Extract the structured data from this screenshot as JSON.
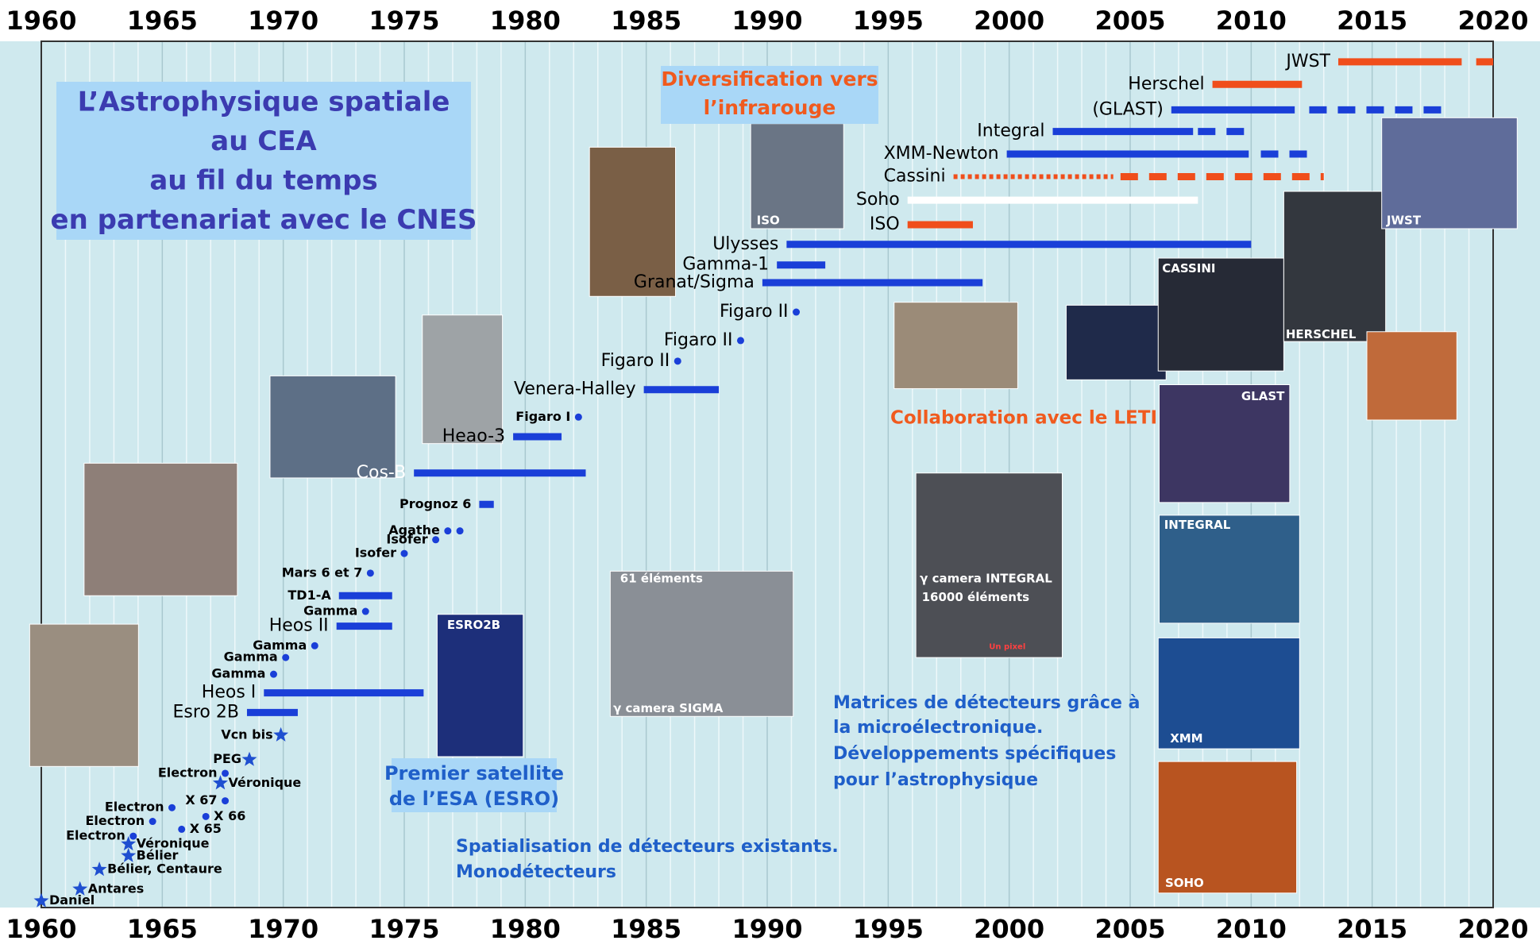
{
  "chart_data": {
    "type": "timeline",
    "title": [
      "L’Astrophysique spatiale",
      "au CEA",
      "au fil du temps",
      "en partenariat avec le CNES"
    ],
    "annotations": [
      {
        "lines": [
          "Diversification vers",
          "l’infrarouge"
        ]
      },
      {
        "lines": [
          "Collaboration avec le LETI"
        ]
      },
      {
        "lines": [
          "Premier satellite",
          "de l’ESA (ESRO)"
        ]
      },
      {
        "lines": [
          "Matrices de détecteurs grâce à",
          " la microélectronique.",
          "Développements spécifiques",
          "pour l’astrophysique"
        ]
      },
      {
        "lines": [
          "Spatialisation de détecteurs existants.",
          "Monodétecteurs"
        ]
      }
    ],
    "photo_captions": [
      "ISO",
      "CASSINI",
      "HERSCHEL",
      "JWST",
      "GLAST",
      "INTEGRAL",
      "XMM",
      "SOHO",
      "ESRO2B",
      "61 éléments",
      "γ camera SIGMA",
      "γ camera INTEGRAL",
      "16000 éléments",
      "Un pixel"
    ],
    "xlim": [
      1960,
      2020
    ],
    "xticks": [
      1960,
      1965,
      1970,
      1975,
      1980,
      1985,
      1990,
      1995,
      2000,
      2005,
      2010,
      2015,
      2020
    ],
    "xminorticks": [
      1961,
      1962,
      1963,
      1964,
      1966,
      1967,
      1968,
      1969,
      1971,
      1972,
      1973,
      1974,
      1976,
      1977,
      1978,
      1979,
      1981,
      1982,
      1983,
      1984,
      1986,
      1987,
      1988,
      1989,
      1991,
      1992,
      1993,
      1994,
      1996,
      1997,
      1998,
      1999,
      2001,
      2002,
      2003,
      2004,
      2006,
      2007,
      2008,
      2009,
      2011,
      2012,
      2013,
      2014,
      2016,
      2017,
      2018,
      2019
    ],
    "grid": true,
    "items": [
      {
        "label": "JWST",
        "color": "#f04e1b",
        "segments": [
          {
            "start": 2013.6,
            "end": 2018.7,
            "style": "solid"
          },
          {
            "start": 2019.3,
            "end": 2020,
            "style": "solid"
          }
        ]
      },
      {
        "label": "Herschel",
        "color": "#f04e1b",
        "segments": [
          {
            "start": 2008.4,
            "end": 2012.1,
            "style": "solid"
          }
        ]
      },
      {
        "label": "(GLAST)",
        "color": "#1a3fd8",
        "segments": [
          {
            "start": 2006.7,
            "end": 2011.8,
            "style": "solid"
          },
          {
            "start": 2012.4,
            "end": 2018.2,
            "style": "dashed"
          }
        ]
      },
      {
        "label": "Integral",
        "color": "#1a3fd8",
        "segments": [
          {
            "start": 2001.8,
            "end": 2007.6,
            "style": "solid"
          },
          {
            "start": 2007.8,
            "end": 2009.9,
            "style": "dashed"
          }
        ]
      },
      {
        "label": "XMM-Newton",
        "color": "#1a3fd8",
        "segments": [
          {
            "start": 1999.9,
            "end": 2009.9,
            "style": "solid"
          },
          {
            "start": 2010.4,
            "end": 2012.4,
            "style": "dashed"
          }
        ]
      },
      {
        "label": "Cassini",
        "color": "#f04e1b",
        "segments": [
          {
            "start": 1997.7,
            "end": 2004.3,
            "style": "dotted"
          },
          {
            "start": 2004.6,
            "end": 2013,
            "style": "dashed"
          }
        ]
      },
      {
        "label": "Soho",
        "color": "#ffffff",
        "segments": [
          {
            "start": 1995.8,
            "end": 2007.8,
            "style": "solid"
          }
        ]
      },
      {
        "label": "ISO",
        "color": "#f04e1b",
        "segments": [
          {
            "start": 1995.8,
            "end": 1998.5,
            "style": "solid"
          }
        ]
      },
      {
        "label": "Ulysses",
        "color": "#1a3fd8",
        "segments": [
          {
            "start": 1990.8,
            "end": 2010,
            "style": "solid"
          }
        ]
      },
      {
        "label": "Gamma-1",
        "color": "#1a3fd8",
        "segments": [
          {
            "start": 1990.4,
            "end": 1992.4,
            "style": "solid"
          }
        ]
      },
      {
        "label": "Granat/Sigma",
        "color": "#1a3fd8",
        "segments": [
          {
            "start": 1989.8,
            "end": 1998.9,
            "style": "solid"
          }
        ]
      },
      {
        "label": "Figaro II",
        "color": "#1a3fd8",
        "marker": "dot",
        "points": [
          1991.2
        ]
      },
      {
        "label": "Figaro II",
        "color": "#1a3fd8",
        "marker": "dot",
        "points": [
          1988.9
        ]
      },
      {
        "label": "Figaro II",
        "color": "#1a3fd8",
        "marker": "dot",
        "points": [
          1986.3
        ]
      },
      {
        "label": "Venera-Halley",
        "color": "#1a3fd8",
        "segments": [
          {
            "start": 1984.9,
            "end": 1988,
            "style": "solid"
          }
        ]
      },
      {
        "label": "Figaro I",
        "color": "#1a3fd8",
        "marker": "dot",
        "points": [
          1982.2
        ]
      },
      {
        "label": "Heao-3",
        "color": "#1a3fd8",
        "segments": [
          {
            "start": 1979.5,
            "end": 1981.5,
            "style": "solid"
          }
        ]
      },
      {
        "label": "Cos-B",
        "color": "#1a3fd8",
        "segments": [
          {
            "start": 1975.4,
            "end": 1982.5,
            "style": "solid"
          }
        ]
      },
      {
        "label": "Prognoz 6",
        "color": "#1a3fd8",
        "segments": [
          {
            "start": 1978.1,
            "end": 1978.7,
            "style": "solid"
          }
        ]
      },
      {
        "label": "Agathe",
        "color": "#1a3fd8",
        "marker": "dot",
        "points": [
          1976.8,
          1977.3
        ]
      },
      {
        "label": "Isofer",
        "color": "#1a3fd8",
        "marker": "dot",
        "points": [
          1976.3
        ]
      },
      {
        "label": "Isofer",
        "color": "#1a3fd8",
        "marker": "dot",
        "points": [
          1975.0
        ]
      },
      {
        "label": "Mars 6 et 7",
        "color": "#1a3fd8",
        "marker": "dot",
        "points": [
          1973.6
        ]
      },
      {
        "label": "TD1-A",
        "color": "#1a3fd8",
        "segments": [
          {
            "start": 1972.3,
            "end": 1974.5,
            "style": "solid"
          }
        ]
      },
      {
        "label": "Gamma",
        "color": "#1a3fd8",
        "marker": "dot",
        "points": [
          1973.4
        ]
      },
      {
        "label": "Heos II",
        "color": "#1a3fd8",
        "segments": [
          {
            "start": 1972.2,
            "end": 1974.5,
            "style": "solid"
          }
        ]
      },
      {
        "label": "Gamma",
        "color": "#1a3fd8",
        "marker": "dot",
        "points": [
          1971.3
        ]
      },
      {
        "label": "Gamma",
        "color": "#1a3fd8",
        "marker": "dot",
        "points": [
          1970.1
        ]
      },
      {
        "label": "Gamma",
        "color": "#1a3fd8",
        "marker": "dot",
        "points": [
          1969.6
        ]
      },
      {
        "label": "Heos I",
        "color": "#1a3fd8",
        "segments": [
          {
            "start": 1969.2,
            "end": 1975.8,
            "style": "solid"
          }
        ]
      },
      {
        "label": "Esro 2B",
        "color": "#1a3fd8",
        "segments": [
          {
            "start": 1968.5,
            "end": 1970.6,
            "style": "solid"
          }
        ]
      },
      {
        "label": "Vcn bis",
        "color": "#1f4fd0",
        "marker": "star",
        "points": [
          1969.9
        ]
      },
      {
        "label": "PEG",
        "color": "#1f4fd0",
        "marker": "star",
        "points": [
          1968.6
        ]
      },
      {
        "label": "Electron",
        "color": "#1a3fd8",
        "marker": "dot",
        "points": [
          1967.6
        ]
      },
      {
        "label": "Véronique",
        "color": "#1f4fd0",
        "marker": "star",
        "points": [
          1967.4
        ]
      },
      {
        "label": "X 67",
        "color": "#1a3fd8",
        "marker": "dot",
        "points": [
          1967.6
        ]
      },
      {
        "label": "Electron",
        "color": "#1a3fd8",
        "marker": "dot",
        "points": [
          1965.4
        ]
      },
      {
        "label": "X 66",
        "color": "#1a3fd8",
        "marker": "dot",
        "points": [
          1966.8
        ]
      },
      {
        "label": "Electron",
        "color": "#1a3fd8",
        "marker": "dot",
        "points": [
          1964.6
        ]
      },
      {
        "label": "X 65",
        "color": "#1a3fd8",
        "marker": "dot",
        "points": [
          1965.8
        ]
      },
      {
        "label": "Electron",
        "color": "#1a3fd8",
        "marker": "dot",
        "points": [
          1963.8
        ]
      },
      {
        "label": "Véronique",
        "color": "#1f4fd0",
        "marker": "star",
        "points": [
          1963.6
        ]
      },
      {
        "label": "Bélier",
        "color": "#1f4fd0",
        "marker": "star",
        "points": [
          1963.6
        ]
      },
      {
        "label": "Bélier, Centaure",
        "color": "#1f4fd0",
        "marker": "star",
        "points": [
          1962.4
        ]
      },
      {
        "label": "Antares",
        "color": "#1f4fd0",
        "marker": "star",
        "points": [
          1961.6
        ]
      },
      {
        "label": "Daniel",
        "color": "#1f4fd0",
        "marker": "star",
        "points": [
          1960
        ]
      }
    ]
  }
}
